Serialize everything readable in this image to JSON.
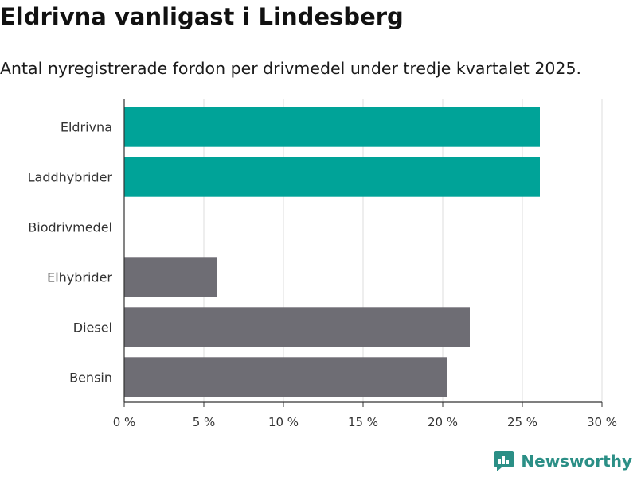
{
  "chart_data": {
    "type": "bar",
    "orientation": "horizontal",
    "title": "Eldrivna vanligast i Lindesberg",
    "subtitle": "Antal nyregistrerade fordon per drivmedel under tredje kvartalet 2025.",
    "categories": [
      "Eldrivna",
      "Laddhybrider",
      "Biodrivmedel",
      "Elhybrider",
      "Diesel",
      "Bensin"
    ],
    "values": [
      26.1,
      26.1,
      0,
      5.8,
      21.7,
      20.3
    ],
    "highlight": [
      true,
      true,
      false,
      false,
      false,
      false
    ],
    "xlim": [
      0,
      30
    ],
    "xticks": [
      0,
      5,
      10,
      15,
      20,
      25,
      30
    ],
    "tick_labels": [
      "0 %",
      "5 %",
      "10 %",
      "15 %",
      "20 %",
      "25 %",
      "30 %"
    ],
    "xlabel": "",
    "ylabel": "",
    "grid": true
  },
  "colors": {
    "highlight": "#00a398",
    "default": "#6e6d74",
    "grid": "#dddddd",
    "axis": "#333333"
  },
  "brand": {
    "name": "Newsworthy",
    "icon": "bar-chart-logo-icon"
  }
}
